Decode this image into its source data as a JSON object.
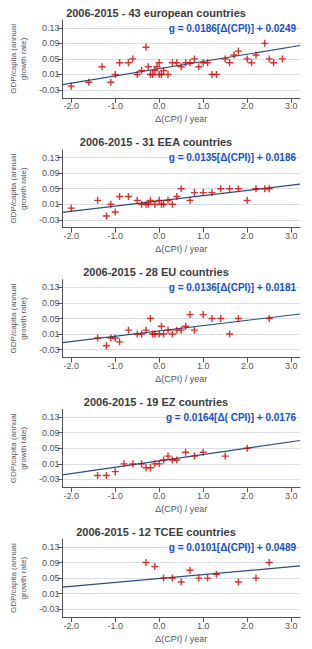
{
  "chart_data": [
    {
      "type": "scatter",
      "title": "2006-2015 - 43 european countries",
      "xlabel": "Δ(CPI) / year",
      "ylabel": "GDP/capita (annual\ngrowth rate)",
      "annotations": [
        {
          "text": "g = 0.0186[Δ(CPI)] + 0.0249",
          "color": "#1a52c4"
        }
      ],
      "xlim": [
        -2.2,
        3.2
      ],
      "ylim": [
        -0.05,
        0.15
      ],
      "xticks": [
        {
          "value": -2.0,
          "label": "-2.0"
        },
        {
          "value": -1.0,
          "label": "-1.0"
        },
        {
          "value": 0.0,
          "label": "0.0"
        },
        {
          "value": 1.0,
          "label": "1.0"
        },
        {
          "value": 2.0,
          "label": "2.0"
        },
        {
          "value": 3.0,
          "label": "3.0"
        }
      ],
      "yticks": [
        -0.03,
        0.01,
        0.05,
        0.09,
        0.13
      ],
      "grid": true,
      "series": [
        {
          "type": "scatter",
          "color": "#cc0000",
          "marker": "+",
          "x": [
            -2.0,
            -1.6,
            -1.3,
            -1.1,
            -1.0,
            -0.9,
            -0.7,
            -0.6,
            -0.5,
            -0.4,
            -0.3,
            -0.25,
            -0.2,
            -0.15,
            -0.1,
            -0.05,
            0.0,
            0.0,
            0.05,
            0.1,
            0.2,
            0.3,
            0.4,
            0.5,
            0.6,
            0.7,
            0.8,
            0.9,
            1.0,
            1.1,
            1.2,
            1.3,
            1.5,
            1.6,
            1.7,
            1.8,
            2.0,
            2.1,
            2.2,
            2.4,
            2.5,
            2.6,
            2.8
          ],
          "values": [
            -0.02,
            -0.01,
            0.03,
            -0.01,
            0.01,
            0.04,
            0.04,
            0.05,
            0.01,
            0.02,
            0.08,
            0.03,
            0.01,
            0.01,
            0.02,
            0.03,
            0.01,
            0.04,
            0.01,
            0.02,
            0.01,
            0.04,
            0.04,
            0.03,
            0.04,
            0.04,
            0.05,
            0.03,
            0.04,
            0.04,
            0.01,
            0.01,
            0.05,
            0.04,
            0.06,
            0.07,
            0.05,
            0.04,
            0.06,
            0.09,
            0.05,
            0.04,
            0.05
          ]
        },
        {
          "type": "line",
          "color": "#2c4f7c",
          "x": [
            -2.2,
            3.2
          ],
          "values": [
            -0.01602,
            0.08442
          ]
        }
      ]
    },
    {
      "type": "scatter",
      "title": "2006-2015 - 31 EEA countries",
      "xlabel": "Δ(CPI) / year",
      "ylabel": "GDP/capita (annual\ngrowth rate)",
      "annotations": [
        {
          "text": "g = 0.0135[Δ(CPI)] + 0.0186",
          "color": "#1a52c4"
        }
      ],
      "xlim": [
        -2.2,
        3.2
      ],
      "ylim": [
        -0.05,
        0.15
      ],
      "xticks": [
        {
          "value": -2.0,
          "label": "-2.0"
        },
        {
          "value": -1.0,
          "label": "-1.0"
        },
        {
          "value": 0.0,
          "label": "0.0"
        },
        {
          "value": 1.0,
          "label": "1.0"
        },
        {
          "value": 2.0,
          "label": "2.0"
        },
        {
          "value": 3.0,
          "label": "3.0"
        }
      ],
      "yticks": [
        -0.03,
        0.01,
        0.05,
        0.09,
        0.13
      ],
      "grid": true,
      "series": [
        {
          "type": "scatter",
          "color": "#cc0000",
          "marker": "+",
          "x": [
            -2.0,
            -1.4,
            -1.2,
            -1.1,
            -1.0,
            -0.9,
            -0.7,
            -0.5,
            -0.4,
            -0.3,
            -0.25,
            -0.2,
            -0.1,
            0.0,
            0.05,
            0.1,
            0.2,
            0.3,
            0.4,
            0.5,
            0.7,
            0.8,
            1.0,
            1.2,
            1.4,
            1.6,
            1.8,
            2.0,
            2.2,
            2.4,
            2.5
          ],
          "values": [
            0.0,
            0.02,
            -0.02,
            0.01,
            -0.01,
            0.03,
            0.03,
            0.02,
            0.01,
            0.01,
            0.01,
            0.02,
            0.01,
            0.02,
            0.01,
            0.01,
            0.02,
            0.01,
            0.03,
            0.05,
            0.02,
            0.04,
            0.04,
            0.04,
            0.05,
            0.05,
            0.05,
            0.02,
            0.05,
            0.05,
            0.05
          ]
        },
        {
          "type": "line",
          "color": "#2c4f7c",
          "x": [
            -2.2,
            3.2
          ],
          "values": [
            -0.0111,
            0.0618
          ]
        }
      ]
    },
    {
      "type": "scatter",
      "title": "2006-2015 - 28 EU countries",
      "xlabel": "Δ(CPI) / year",
      "ylabel": "GDP/capita (annual\ngrowth rate)",
      "annotations": [
        {
          "text": "g = 0.0136[Δ(CPI)] + 0.0181",
          "color": "#1a52c4"
        }
      ],
      "xlim": [
        -2.2,
        3.2
      ],
      "ylim": [
        -0.05,
        0.15
      ],
      "xticks": [
        {
          "value": -2.0,
          "label": "-2.0"
        },
        {
          "value": -1.0,
          "label": "-1.0"
        },
        {
          "value": 0.0,
          "label": "0.0"
        },
        {
          "value": 1.0,
          "label": "1.0"
        },
        {
          "value": 2.0,
          "label": "2.0"
        },
        {
          "value": 3.0,
          "label": "3.0"
        }
      ],
      "yticks": [
        -0.03,
        0.01,
        0.05,
        0.09,
        0.13
      ],
      "grid": true,
      "series": [
        {
          "type": "scatter",
          "color": "#cc0000",
          "marker": "+",
          "x": [
            -1.4,
            -1.2,
            -1.1,
            -1.0,
            -0.9,
            -0.7,
            -0.5,
            -0.4,
            -0.3,
            -0.2,
            -0.15,
            -0.1,
            0.0,
            0.05,
            0.1,
            0.2,
            0.3,
            0.4,
            0.5,
            0.6,
            0.7,
            0.8,
            1.0,
            1.2,
            1.4,
            1.6,
            1.8,
            2.5
          ],
          "values": [
            0.0,
            -0.02,
            0.0,
            0.0,
            -0.01,
            0.02,
            0.01,
            0.01,
            0.02,
            0.05,
            0.01,
            0.01,
            0.01,
            0.03,
            0.01,
            0.02,
            0.01,
            0.02,
            0.02,
            0.03,
            0.06,
            0.02,
            0.06,
            0.05,
            0.05,
            0.01,
            0.05,
            0.05
          ]
        },
        {
          "type": "line",
          "color": "#2c4f7c",
          "x": [
            -2.2,
            3.2
          ],
          "values": [
            -0.01182,
            0.06162
          ]
        }
      ]
    },
    {
      "type": "scatter",
      "title": "2006-2015 - 19 EZ countries",
      "xlabel": "Δ(CPI) / year",
      "ylabel": "GDP/capita (annual\ngrowth rate)",
      "annotations": [
        {
          "text": "g = 0.0164[Δ( CPI)] + 0.0176",
          "color": "#1a52c4"
        }
      ],
      "xlim": [
        -2.2,
        3.2
      ],
      "ylim": [
        -0.05,
        0.15
      ],
      "xticks": [
        {
          "value": -2.0,
          "label": "-2.0"
        },
        {
          "value": -1.0,
          "label": "-1.0"
        },
        {
          "value": 0.0,
          "label": "0.0"
        },
        {
          "value": 1.0,
          "label": "1.0"
        },
        {
          "value": 2.0,
          "label": "2.0"
        },
        {
          "value": 3.0,
          "label": "3.0"
        }
      ],
      "yticks": [
        -0.03,
        0.01,
        0.05,
        0.09,
        0.13
      ],
      "grid": true,
      "series": [
        {
          "type": "scatter",
          "color": "#cc0000",
          "marker": "+",
          "x": [
            -1.4,
            -1.2,
            -1.0,
            -0.8,
            -0.6,
            -0.4,
            -0.3,
            -0.2,
            -0.1,
            0.0,
            0.1,
            0.2,
            0.3,
            0.4,
            0.6,
            0.8,
            1.0,
            1.5,
            2.0
          ],
          "values": [
            -0.02,
            -0.02,
            -0.01,
            0.01,
            0.01,
            0.01,
            0.0,
            0.0,
            0.01,
            0.01,
            0.02,
            0.03,
            0.02,
            0.02,
            0.04,
            0.03,
            0.04,
            0.03,
            0.05
          ]
        },
        {
          "type": "line",
          "color": "#2c4f7c",
          "x": [
            -2.2,
            3.2
          ],
          "values": [
            -0.01848,
            0.07008
          ]
        }
      ]
    },
    {
      "type": "scatter",
      "title": "2006-2015 - 12 TCEE countries",
      "xlabel": "Δ(CPI) / year",
      "ylabel": "GDP/capita (annual\ngrowth rate)",
      "annotations": [
        {
          "text": "g = 0.0101[Δ(CPI)] + 0.0489",
          "color": "#1a52c4"
        }
      ],
      "xlim": [
        -2.2,
        3.2
      ],
      "ylim": [
        -0.05,
        0.15
      ],
      "xticks": [
        {
          "value": -2.0,
          "label": "-2.0"
        },
        {
          "value": -1.0,
          "label": "-1.0"
        },
        {
          "value": 0.0,
          "label": "0.0"
        },
        {
          "value": 1.0,
          "label": "1.0"
        },
        {
          "value": 2.0,
          "label": "2.0"
        },
        {
          "value": 3.0,
          "label": "3.0"
        }
      ],
      "yticks": [
        -0.03,
        0.01,
        0.05,
        0.09,
        0.13
      ],
      "grid": true,
      "series": [
        {
          "type": "scatter",
          "color": "#cc0000",
          "marker": "+",
          "x": [
            -0.3,
            -0.1,
            0.1,
            0.3,
            0.5,
            0.7,
            0.9,
            1.1,
            1.3,
            1.8,
            2.2,
            2.5
          ],
          "values": [
            0.09,
            0.08,
            0.05,
            0.05,
            0.04,
            0.07,
            0.05,
            0.05,
            0.06,
            0.04,
            0.05,
            0.09
          ]
        },
        {
          "type": "line",
          "color": "#2c4f7c",
          "x": [
            -2.2,
            3.2
          ],
          "values": [
            0.02668,
            0.08122
          ]
        }
      ]
    }
  ]
}
